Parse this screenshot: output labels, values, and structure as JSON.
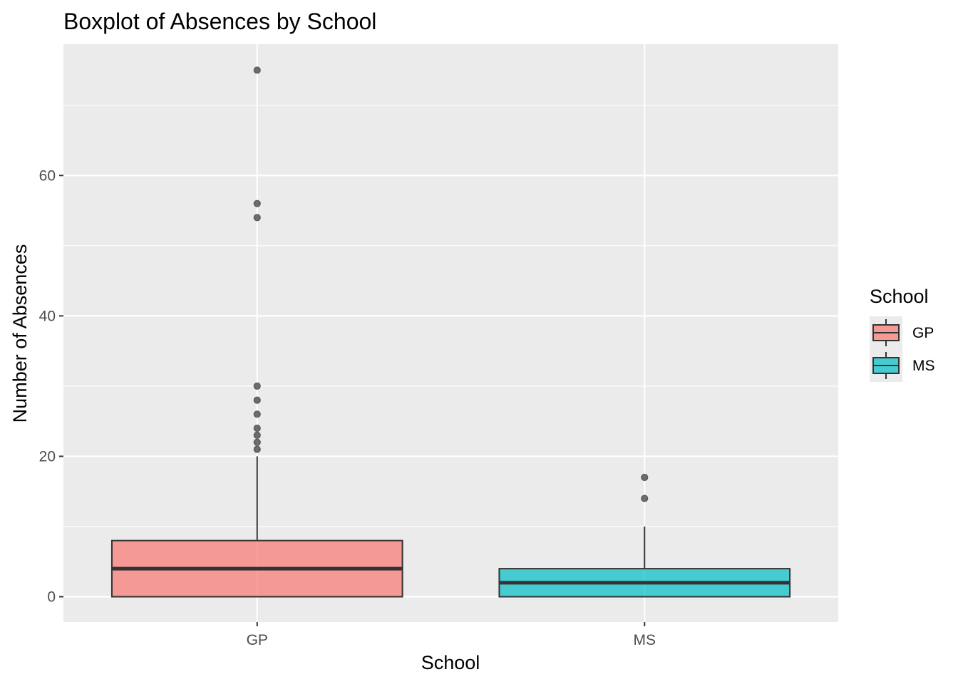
{
  "chart_data": {
    "type": "boxplot",
    "title": "Boxplot of Absences by School",
    "xlabel": "School",
    "ylabel": "Number of Absences",
    "categories": [
      "GP",
      "MS"
    ],
    "ylim": [
      -3.6,
      78.7
    ],
    "y_ticks": [
      0,
      20,
      40,
      60
    ],
    "grid": true,
    "legend": {
      "title": "School",
      "placement": "right",
      "entries": [
        "GP",
        "MS"
      ]
    },
    "boxes": [
      {
        "category": "GP",
        "color": "#F8766D",
        "min": 0,
        "q1": 0,
        "median": 4,
        "q3": 8,
        "whisker_high": 20,
        "outliers": [
          21,
          22,
          23,
          24,
          26,
          28,
          30,
          54,
          56,
          75
        ]
      },
      {
        "category": "MS",
        "color": "#00BFC4",
        "min": 0,
        "q1": 0,
        "median": 2,
        "q3": 4,
        "whisker_high": 10,
        "outliers": [
          14,
          17
        ]
      }
    ]
  }
}
